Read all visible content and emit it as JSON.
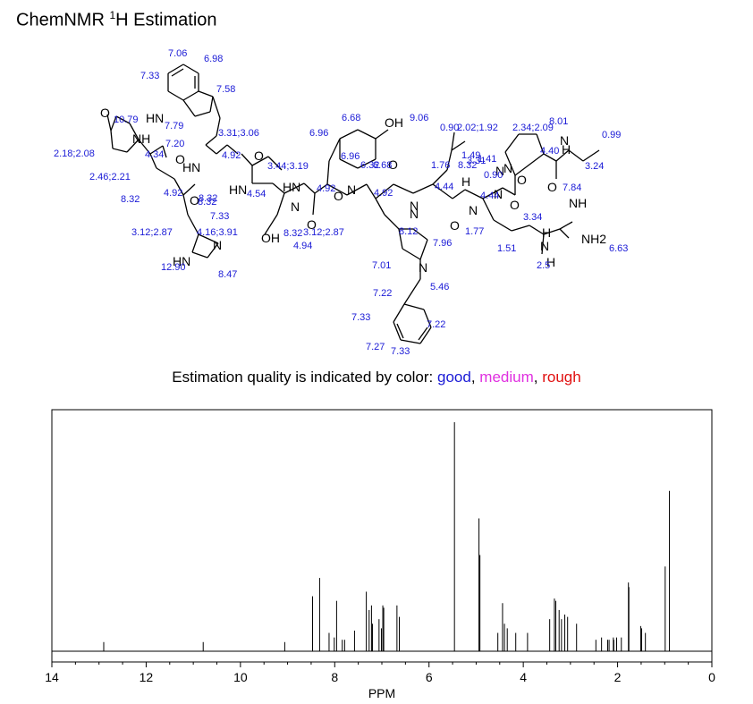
{
  "header": {
    "title_pre": "ChemNMR ",
    "title_sup": "1",
    "title_post": "H Estimation"
  },
  "legend": {
    "prefix": "Estimation quality is indicated by color: ",
    "good": "good",
    "medium": "medium",
    "rough": "rough",
    "sep": ", ",
    "colors": {
      "good": "#1a1ad6",
      "medium": "#e030e0",
      "rough": "#e01010"
    }
  },
  "structure": {
    "atoms": [
      "O",
      "NH",
      "HN",
      "O",
      "HN",
      "O",
      "HN",
      "O",
      "HN",
      "O",
      "N",
      "OH",
      "O",
      "N",
      "N",
      "O",
      "N",
      "O",
      "N",
      "O",
      "N",
      "O",
      "N",
      "H",
      "NH",
      "NH2",
      "H",
      "N",
      "N",
      "OH",
      "HN",
      "N",
      "O",
      "H",
      "H",
      "N",
      "N"
    ],
    "shift_labels": [
      "7.06",
      "6.98",
      "7.33",
      "7.58",
      "10.79",
      "7.79",
      "3.31;3.06",
      "6.68",
      "9.06",
      "0.90",
      "2.02;1.92",
      "2.34;2.09",
      "8.01",
      "0.99",
      "6.96",
      "2.18;2.08",
      "4.34",
      "7.20",
      "4.92",
      "3.44;3.19",
      "6.32",
      "6.68",
      "1.76",
      "3.31",
      "1.49",
      "1.41",
      "8.32",
      "0.90",
      "4.40",
      "3.24",
      "8.32",
      "2.46;2.21",
      "8.32",
      "4.92",
      "8.32",
      "4.54",
      "4.92",
      "6.96",
      "4.92",
      "4.44",
      "4.44",
      "7.84",
      "7.33",
      "3.34",
      "3.12;2.87",
      "4.16;3.91",
      "8.32",
      "3.12;2.87",
      "8.12",
      "7.96",
      "1.77",
      "1.51",
      "6.63",
      "4.94",
      "12.90",
      "8.47",
      "7.01",
      "2.5",
      "5.46",
      "7.22",
      "7.33",
      "7.22",
      "7.27",
      "7.33"
    ]
  },
  "chart_data": {
    "type": "line",
    "title": "",
    "xlabel": "PPM",
    "ylabel": "",
    "xlim": [
      14,
      0
    ],
    "x_ticks": [
      "14",
      "12",
      "10",
      "8",
      "6",
      "4",
      "2",
      "0"
    ],
    "grid": false,
    "peaks_ppm": [
      12.9,
      10.79,
      9.06,
      8.47,
      8.32,
      8.12,
      8.01,
      7.96,
      7.84,
      7.79,
      7.58,
      7.33,
      7.27,
      7.22,
      7.2,
      7.06,
      7.01,
      6.98,
      6.96,
      6.68,
      6.63,
      5.46,
      4.94,
      4.92,
      4.54,
      4.44,
      4.4,
      4.34,
      4.16,
      3.91,
      3.44,
      3.34,
      3.31,
      3.24,
      3.19,
      3.12,
      3.06,
      2.87,
      2.46,
      2.34,
      2.21,
      2.18,
      2.09,
      2.08,
      2.02,
      1.92,
      1.77,
      1.76,
      1.51,
      1.49,
      1.41,
      0.99,
      0.9
    ],
    "relative_heights": [
      0.04,
      0.04,
      0.04,
      0.24,
      0.32,
      0.08,
      0.06,
      0.22,
      0.05,
      0.05,
      0.09,
      0.26,
      0.18,
      0.2,
      0.12,
      0.14,
      0.1,
      0.2,
      0.19,
      0.2,
      0.15,
      1.0,
      0.58,
      0.42,
      0.08,
      0.21,
      0.12,
      0.1,
      0.08,
      0.08,
      0.14,
      0.23,
      0.22,
      0.18,
      0.14,
      0.16,
      0.15,
      0.12,
      0.05,
      0.06,
      0.05,
      0.05,
      0.06,
      0.05,
      0.06,
      0.06,
      0.3,
      0.28,
      0.11,
      0.1,
      0.08,
      0.37,
      0.7
    ]
  }
}
